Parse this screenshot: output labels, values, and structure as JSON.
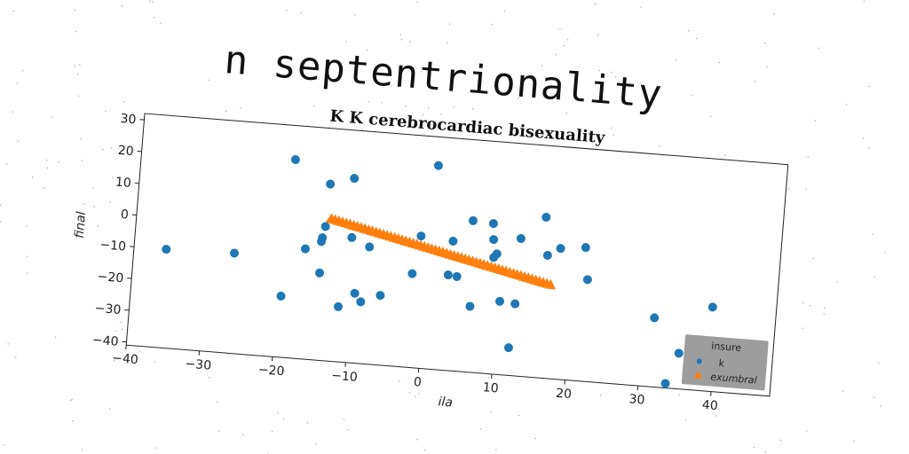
{
  "super_title": "n septentrionality",
  "chart_data": {
    "type": "scatter",
    "title": "K K cerebrocardiac bisexuality",
    "xlabel": "ila",
    "ylabel": "final",
    "xlim": [
      -40,
      48
    ],
    "ylim": [
      -41,
      32
    ],
    "xticks": [
      -40,
      -30,
      -20,
      -10,
      0,
      10,
      20,
      30,
      40
    ],
    "yticks": [
      -40,
      -30,
      -20,
      -10,
      0,
      10,
      20,
      30
    ],
    "grid": false,
    "legend": {
      "title": "insure",
      "placement": "lower-right"
    },
    "series": [
      {
        "name": "k",
        "marker": "circle",
        "color": "#1f77b4",
        "points": [
          [
            -35.6,
            -10.0
          ],
          [
            -26.3,
            -9.5
          ],
          [
            -19.5,
            -21.8
          ],
          [
            -19.0,
            21.3
          ],
          [
            -16.7,
            -6.4
          ],
          [
            -14.6,
            -3.7
          ],
          [
            -14.5,
            -13.6
          ],
          [
            -14.5,
            -2.5
          ],
          [
            -14.2,
            1.1
          ],
          [
            -14.0,
            14.5
          ],
          [
            -10.8,
            16.9
          ],
          [
            -10.5,
            -1.7
          ],
          [
            -9.5,
            -19.1
          ],
          [
            -8.6,
            -21.6
          ],
          [
            -8.0,
            -4.2
          ],
          [
            -6.0,
            -19.1
          ],
          [
            -11.6,
            -23.7
          ],
          [
            -1.9,
            -11.5
          ],
          [
            -1.1,
            0.5
          ],
          [
            0.5,
            23.0
          ],
          [
            3.0,
            -11.0
          ],
          [
            3.3,
            -0.3
          ],
          [
            4.2,
            -11.3
          ],
          [
            5.8,
            6.6
          ],
          [
            6.3,
            -20.3
          ],
          [
            8.6,
            6.2
          ],
          [
            8.8,
            1.2
          ],
          [
            9.0,
            -4.4
          ],
          [
            9.4,
            -3.2
          ],
          [
            10.3,
            -18.0
          ],
          [
            12.0,
            -32.3
          ],
          [
            12.4,
            -18.4
          ],
          [
            12.5,
            2.2
          ],
          [
            15.7,
            9.5
          ],
          [
            16.3,
            -2.4
          ],
          [
            18.0,
            0.1
          ],
          [
            21.4,
            1.0
          ],
          [
            22.0,
            -9.0
          ],
          [
            31.5,
            -19.3
          ],
          [
            35.2,
            -29.8
          ],
          [
            33.7,
            -39.6
          ],
          [
            39.3,
            -14.5
          ]
        ]
      },
      {
        "name": "exumbral",
        "marker": "triangle-up",
        "color": "#ff7f0e",
        "x_range": [
          -13.5,
          17.0
        ],
        "y_range": [
          3.5,
          -11.7
        ],
        "count": 60
      }
    ]
  }
}
